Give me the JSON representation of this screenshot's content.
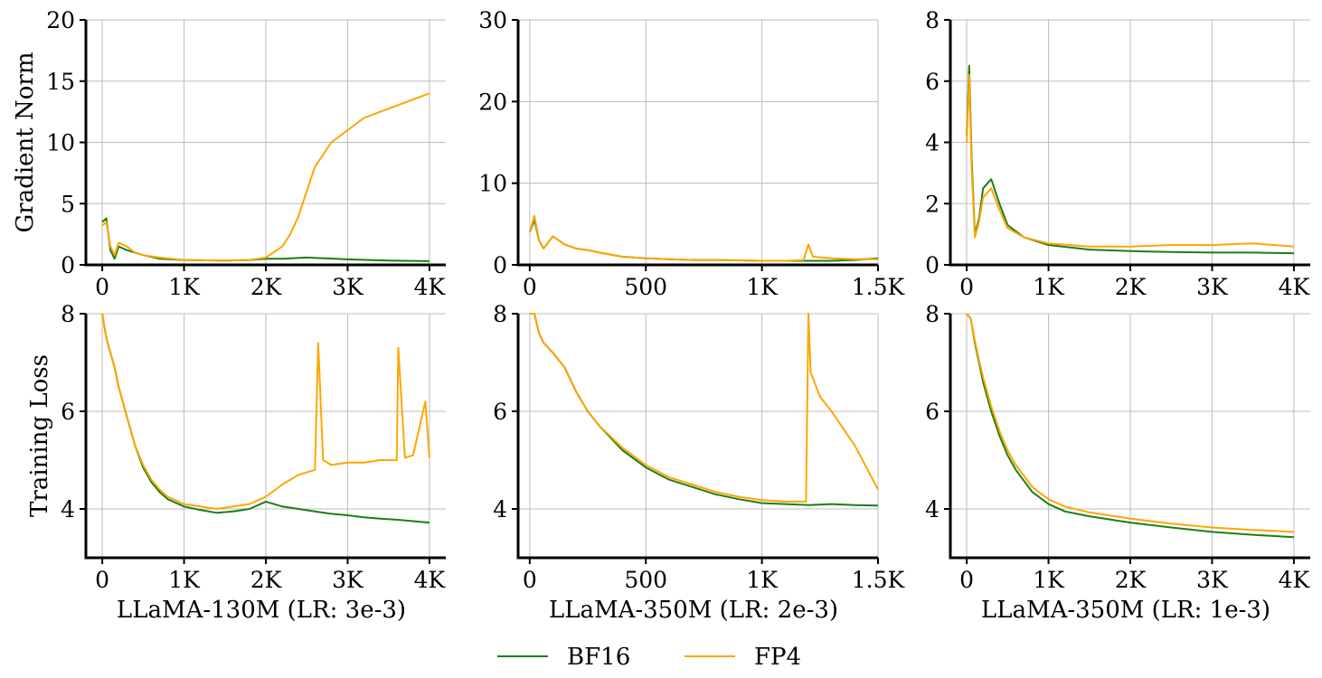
{
  "legend": [
    {
      "name": "BF16",
      "color": "#1a7f14"
    },
    {
      "name": "FP4",
      "color": "#ffa500"
    }
  ],
  "chart_data": [
    {
      "type": "line",
      "panel": "top-left",
      "ylabel": "Gradient Norm",
      "xlabel": "",
      "xlim": [
        -200,
        4200
      ],
      "ylim": [
        0,
        20
      ],
      "xticks": [
        0,
        1000,
        2000,
        3000,
        4000
      ],
      "xtick_labels": [
        "0",
        "1K",
        "2K",
        "3K",
        "4K"
      ],
      "yticks": [
        0,
        5,
        10,
        15,
        20
      ],
      "ytick_labels": [
        "0",
        "5",
        "10",
        "15",
        "20"
      ],
      "grid": true,
      "series": [
        {
          "name": "BF16",
          "x": [
            0,
            50,
            100,
            150,
            200,
            300,
            400,
            500,
            700,
            1000,
            1500,
            1800,
            2000,
            2200,
            2500,
            3000,
            3500,
            4000
          ],
          "y": [
            3.5,
            3.8,
            1.2,
            0.5,
            1.5,
            1.2,
            1.0,
            0.8,
            0.5,
            0.4,
            0.35,
            0.4,
            0.5,
            0.5,
            0.6,
            0.45,
            0.35,
            0.3
          ]
        },
        {
          "name": "FP4",
          "x": [
            0,
            50,
            100,
            150,
            200,
            300,
            400,
            500,
            700,
            1000,
            1500,
            1800,
            2000,
            2200,
            2300,
            2400,
            2500,
            2600,
            2700,
            2800,
            3000,
            3200,
            3400,
            3600,
            3800,
            4000
          ],
          "y": [
            3.2,
            3.5,
            1.5,
            0.8,
            1.8,
            1.5,
            1.0,
            0.8,
            0.6,
            0.4,
            0.35,
            0.4,
            0.6,
            1.5,
            2.5,
            4.0,
            6.0,
            8.0,
            9.0,
            10.0,
            11.0,
            12.0,
            12.5,
            13.0,
            13.5,
            14.0
          ]
        }
      ]
    },
    {
      "type": "line",
      "panel": "top-middle",
      "ylabel": "",
      "xlabel": "",
      "xlim": [
        -50,
        1500
      ],
      "ylim": [
        0,
        30
      ],
      "xticks": [
        0,
        500,
        1000,
        1500
      ],
      "xtick_labels": [
        "0",
        "500",
        "1K",
        "1.5K"
      ],
      "yticks": [
        0,
        10,
        20,
        30
      ],
      "ytick_labels": [
        "0",
        "10",
        "20",
        "30"
      ],
      "grid": true,
      "series": [
        {
          "name": "BF16",
          "x": [
            0,
            20,
            40,
            60,
            100,
            150,
            200,
            250,
            300,
            400,
            500,
            600,
            700,
            800,
            900,
            1000,
            1100,
            1200,
            1300,
            1400,
            1500
          ],
          "y": [
            4,
            5.5,
            3,
            2,
            3.5,
            2.5,
            2,
            1.8,
            1.5,
            1.0,
            0.8,
            0.7,
            0.6,
            0.6,
            0.55,
            0.5,
            0.5,
            0.5,
            0.5,
            0.6,
            0.8
          ]
        },
        {
          "name": "FP4",
          "x": [
            0,
            20,
            40,
            60,
            100,
            150,
            200,
            250,
            300,
            400,
            500,
            600,
            700,
            800,
            900,
            1000,
            1100,
            1180,
            1200,
            1220,
            1300,
            1400,
            1500
          ],
          "y": [
            4,
            6,
            3,
            2,
            3.5,
            2.5,
            2,
            1.8,
            1.5,
            1.0,
            0.8,
            0.7,
            0.6,
            0.6,
            0.55,
            0.5,
            0.5,
            0.6,
            2.5,
            1.0,
            0.8,
            0.7,
            0.7
          ]
        }
      ]
    },
    {
      "type": "line",
      "panel": "top-right",
      "ylabel": "",
      "xlabel": "",
      "xlim": [
        -200,
        4200
      ],
      "ylim": [
        0,
        8
      ],
      "xticks": [
        0,
        1000,
        2000,
        3000,
        4000
      ],
      "xtick_labels": [
        "0",
        "1K",
        "2K",
        "3K",
        "4K"
      ],
      "yticks": [
        0,
        2,
        4,
        6,
        8
      ],
      "ytick_labels": [
        "0",
        "2",
        "4",
        "6",
        "8"
      ],
      "grid": true,
      "series": [
        {
          "name": "BF16",
          "x": [
            0,
            30,
            60,
            100,
            150,
            200,
            300,
            400,
            500,
            700,
            1000,
            1500,
            2000,
            2500,
            3000,
            3500,
            4000
          ],
          "y": [
            4.2,
            6.5,
            3.5,
            1.0,
            1.5,
            2.5,
            2.8,
            2.0,
            1.3,
            0.9,
            0.65,
            0.5,
            0.45,
            0.42,
            0.4,
            0.4,
            0.38
          ]
        },
        {
          "name": "FP4",
          "x": [
            0,
            30,
            60,
            100,
            150,
            200,
            300,
            400,
            500,
            700,
            1000,
            1500,
            2000,
            2500,
            3000,
            3500,
            4000
          ],
          "y": [
            4.0,
            6.2,
            3.2,
            0.9,
            1.4,
            2.2,
            2.5,
            1.8,
            1.2,
            0.9,
            0.7,
            0.6,
            0.6,
            0.65,
            0.65,
            0.7,
            0.6
          ]
        }
      ]
    },
    {
      "type": "line",
      "panel": "bottom-left",
      "ylabel": "Training Loss",
      "xlabel": "LLaMA-130M (LR: 3e-3)",
      "xlim": [
        -200,
        4200
      ],
      "ylim": [
        3,
        8
      ],
      "xticks": [
        0,
        1000,
        2000,
        3000,
        4000
      ],
      "xtick_labels": [
        "0",
        "1K",
        "2K",
        "3K",
        "4K"
      ],
      "yticks": [
        4,
        6,
        8
      ],
      "ytick_labels": [
        "4",
        "6",
        "8"
      ],
      "grid": true,
      "series": [
        {
          "name": "BF16",
          "x": [
            0,
            50,
            100,
            150,
            200,
            300,
            400,
            500,
            600,
            700,
            800,
            1000,
            1200,
            1400,
            1600,
            1800,
            2000,
            2100,
            2200,
            2400,
            2600,
            2800,
            3000,
            3200,
            3400,
            3600,
            3800,
            4000
          ],
          "y": [
            8.0,
            7.5,
            7.2,
            6.9,
            6.5,
            5.9,
            5.3,
            4.85,
            4.55,
            4.35,
            4.2,
            4.05,
            3.98,
            3.92,
            3.95,
            4.0,
            4.15,
            4.1,
            4.05,
            4.0,
            3.95,
            3.9,
            3.87,
            3.83,
            3.8,
            3.78,
            3.75,
            3.72
          ]
        },
        {
          "name": "FP4",
          "x": [
            0,
            50,
            100,
            150,
            200,
            300,
            400,
            500,
            600,
            700,
            800,
            1000,
            1200,
            1400,
            1600,
            1800,
            2000,
            2200,
            2400,
            2600,
            2640,
            2700,
            2800,
            3000,
            3200,
            3400,
            3600,
            3620,
            3700,
            3800,
            3950,
            4000
          ],
          "y": [
            8.0,
            7.5,
            7.2,
            6.9,
            6.5,
            5.9,
            5.3,
            4.9,
            4.6,
            4.4,
            4.25,
            4.1,
            4.05,
            4.0,
            4.05,
            4.1,
            4.25,
            4.5,
            4.7,
            4.8,
            7.4,
            5.0,
            4.9,
            4.95,
            4.95,
            5.0,
            5.0,
            7.3,
            5.05,
            5.1,
            6.2,
            5.05
          ]
        }
      ]
    },
    {
      "type": "line",
      "panel": "bottom-middle",
      "ylabel": "",
      "xlabel": "LLaMA-350M (LR: 2e-3)",
      "xlim": [
        -50,
        1500
      ],
      "ylim": [
        3,
        8
      ],
      "xticks": [
        0,
        500,
        1000,
        1500
      ],
      "xtick_labels": [
        "0",
        "500",
        "1K",
        "1.5K"
      ],
      "yticks": [
        4,
        6,
        8
      ],
      "ytick_labels": [
        "4",
        "6",
        "8"
      ],
      "grid": true,
      "series": [
        {
          "name": "BF16",
          "x": [
            0,
            20,
            40,
            60,
            80,
            100,
            150,
            200,
            250,
            300,
            400,
            500,
            600,
            700,
            800,
            900,
            1000,
            1100,
            1200,
            1300,
            1400,
            1500
          ],
          "y": [
            8.5,
            8.0,
            7.6,
            7.4,
            7.3,
            7.2,
            6.9,
            6.4,
            6.0,
            5.7,
            5.2,
            4.85,
            4.6,
            4.45,
            4.3,
            4.2,
            4.12,
            4.1,
            4.08,
            4.1,
            4.08,
            4.07
          ]
        },
        {
          "name": "FP4",
          "x": [
            0,
            20,
            40,
            60,
            80,
            100,
            150,
            200,
            250,
            300,
            400,
            500,
            600,
            700,
            800,
            900,
            1000,
            1100,
            1190,
            1200,
            1210,
            1250,
            1300,
            1400,
            1500
          ],
          "y": [
            8.5,
            8.0,
            7.6,
            7.4,
            7.3,
            7.2,
            6.9,
            6.4,
            6.0,
            5.7,
            5.25,
            4.9,
            4.65,
            4.5,
            4.35,
            4.25,
            4.18,
            4.15,
            4.15,
            8.0,
            6.8,
            6.3,
            6.0,
            5.3,
            4.4
          ]
        }
      ]
    },
    {
      "type": "line",
      "panel": "bottom-right",
      "ylabel": "",
      "xlabel": "LLaMA-350M (LR: 1e-3)",
      "xlim": [
        -200,
        4200
      ],
      "ylim": [
        3,
        8
      ],
      "xticks": [
        0,
        1000,
        2000,
        3000,
        4000
      ],
      "xtick_labels": [
        "0",
        "1K",
        "2K",
        "3K",
        "4K"
      ],
      "yticks": [
        4,
        6,
        8
      ],
      "ytick_labels": [
        "4",
        "6",
        "8"
      ],
      "grid": true,
      "series": [
        {
          "name": "BF16",
          "x": [
            0,
            50,
            100,
            150,
            200,
            300,
            400,
            500,
            600,
            800,
            1000,
            1200,
            1500,
            2000,
            2500,
            3000,
            3500,
            4000
          ],
          "y": [
            8.5,
            7.9,
            7.4,
            7.0,
            6.6,
            6.0,
            5.5,
            5.1,
            4.8,
            4.35,
            4.1,
            3.95,
            3.85,
            3.72,
            3.62,
            3.53,
            3.47,
            3.42
          ]
        },
        {
          "name": "FP4",
          "x": [
            0,
            50,
            100,
            150,
            200,
            300,
            400,
            500,
            600,
            800,
            1000,
            1200,
            1500,
            2000,
            2500,
            3000,
            3500,
            4000
          ],
          "y": [
            8.5,
            7.9,
            7.45,
            7.05,
            6.7,
            6.1,
            5.6,
            5.2,
            4.9,
            4.45,
            4.2,
            4.05,
            3.93,
            3.8,
            3.7,
            3.62,
            3.57,
            3.53
          ]
        }
      ]
    }
  ]
}
